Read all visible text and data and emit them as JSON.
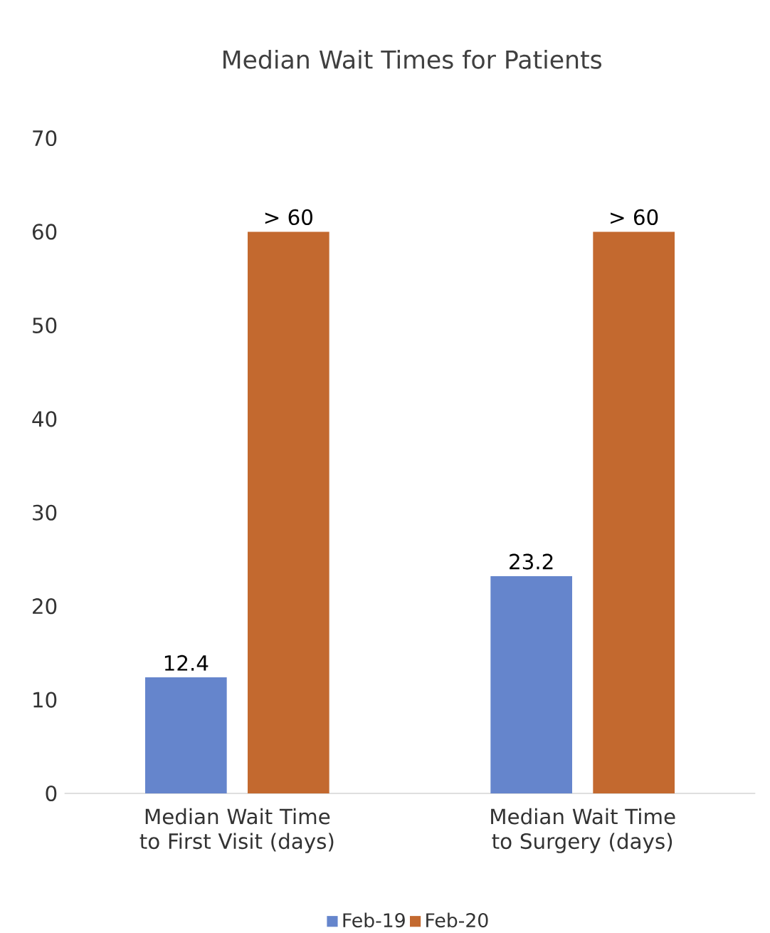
{
  "chart_data": {
    "type": "bar",
    "title": "Median Wait Times for Patients",
    "categories": [
      "Median Wait Time to First Visit (days)",
      "Median Wait Time to Surgery (days)"
    ],
    "series": [
      {
        "name": "Feb-19",
        "color": "#6585cc",
        "values": [
          12.4,
          23.2
        ],
        "value_labels": [
          "12.4",
          "23.2"
        ]
      },
      {
        "name": "Feb-20",
        "color": "#c3692f",
        "values": [
          60,
          60
        ],
        "value_labels": [
          "> 60",
          "> 60"
        ]
      }
    ],
    "ylim": [
      0,
      70
    ],
    "yticks": [
      0,
      10,
      20,
      30,
      40,
      50,
      60,
      70
    ],
    "legend": "bottom"
  }
}
